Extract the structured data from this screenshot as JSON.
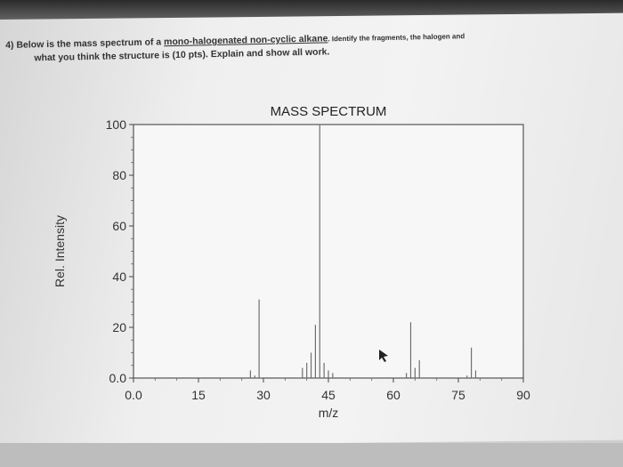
{
  "question": {
    "number": "4)",
    "pre": "Below is the mass spectrum of a ",
    "compound": "mono-halogenated non-cyclic alkane",
    "tail": ". Identify the fragments, the halogen and",
    "line2": "what you think the structure is (10 pts). Explain and show all work."
  },
  "chart_data": {
    "type": "bar",
    "title": "MASS SPECTRUM",
    "xlabel": "m/z",
    "ylabel": "Rel. Intensity",
    "xlim": [
      0,
      90
    ],
    "ylim": [
      0,
      100
    ],
    "xticks": [
      "0.0",
      "15",
      "30",
      "45",
      "60",
      "75",
      "90"
    ],
    "yticks": [
      "0.0",
      "20",
      "40",
      "60",
      "80",
      "100"
    ],
    "x": [
      27,
      28,
      29,
      39,
      40,
      41,
      42,
      43,
      44,
      45,
      46,
      63,
      64,
      65,
      66,
      77,
      78,
      79
    ],
    "values": [
      3,
      1,
      31,
      4,
      6,
      10,
      21,
      100,
      6,
      3,
      2,
      2,
      22,
      4,
      7,
      1,
      12,
      3
    ]
  }
}
